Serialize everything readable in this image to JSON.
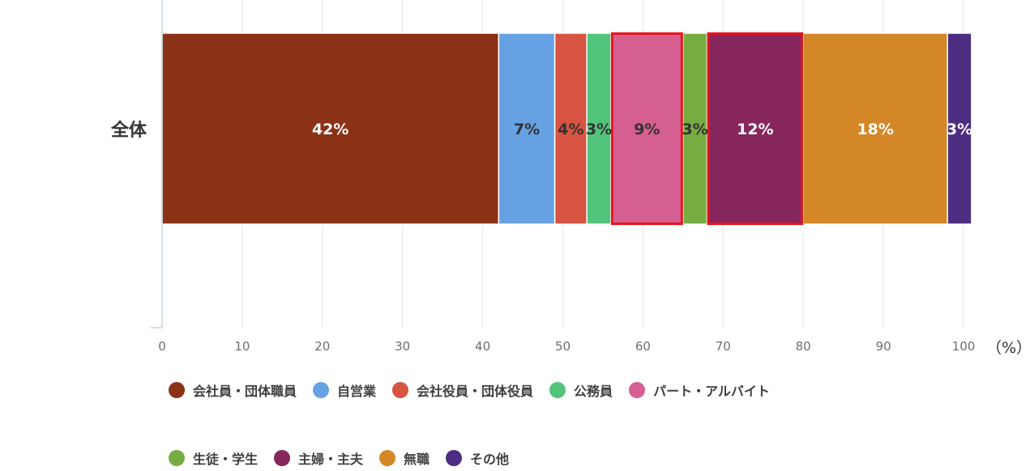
{
  "chart_data": {
    "type": "bar",
    "orientation": "horizontal",
    "stacked": true,
    "categories": [
      "全体"
    ],
    "series": [
      {
        "name": "会社員・団体職員",
        "values": [
          42
        ],
        "label": "42%",
        "color": "#8b3216",
        "label_color": "#ffffff"
      },
      {
        "name": "自営業",
        "values": [
          7
        ],
        "label": "7%",
        "color": "#66a1e3",
        "label_color": "#333333"
      },
      {
        "name": "会社役員・団体役員",
        "values": [
          4
        ],
        "label": "4%",
        "color": "#d75442",
        "label_color": "#333333"
      },
      {
        "name": "公務員",
        "values": [
          3
        ],
        "label": "3%",
        "color": "#52c47c",
        "label_color": "#333333"
      },
      {
        "name": "パート・アルバイト",
        "values": [
          9
        ],
        "label": "9%",
        "color": "#d65f91",
        "label_color": "#333333",
        "highlighted": true
      },
      {
        "name": "生徒・学生",
        "values": [
          3
        ],
        "label": "3%",
        "color": "#76ad42",
        "label_color": "#333333"
      },
      {
        "name": "主婦・主夫",
        "values": [
          12
        ],
        "label": "12%",
        "color": "#86265d",
        "label_color": "#ffffff",
        "highlighted": true
      },
      {
        "name": "無職",
        "values": [
          18
        ],
        "label": "18%",
        "color": "#d38727",
        "label_color": "#ffffff"
      },
      {
        "name": "その他",
        "values": [
          3
        ],
        "label": "3%",
        "color": "#4c2d82",
        "label_color": "#ffffff"
      }
    ],
    "x_ticks": [
      "0",
      "10",
      "20",
      "30",
      "40",
      "50",
      "60",
      "70",
      "80",
      "90",
      "100"
    ],
    "xlim": [
      0,
      100
    ],
    "x_unit": "（%）",
    "grid": true,
    "legend_position": "bottom",
    "highlight_color": "#e8141c"
  }
}
